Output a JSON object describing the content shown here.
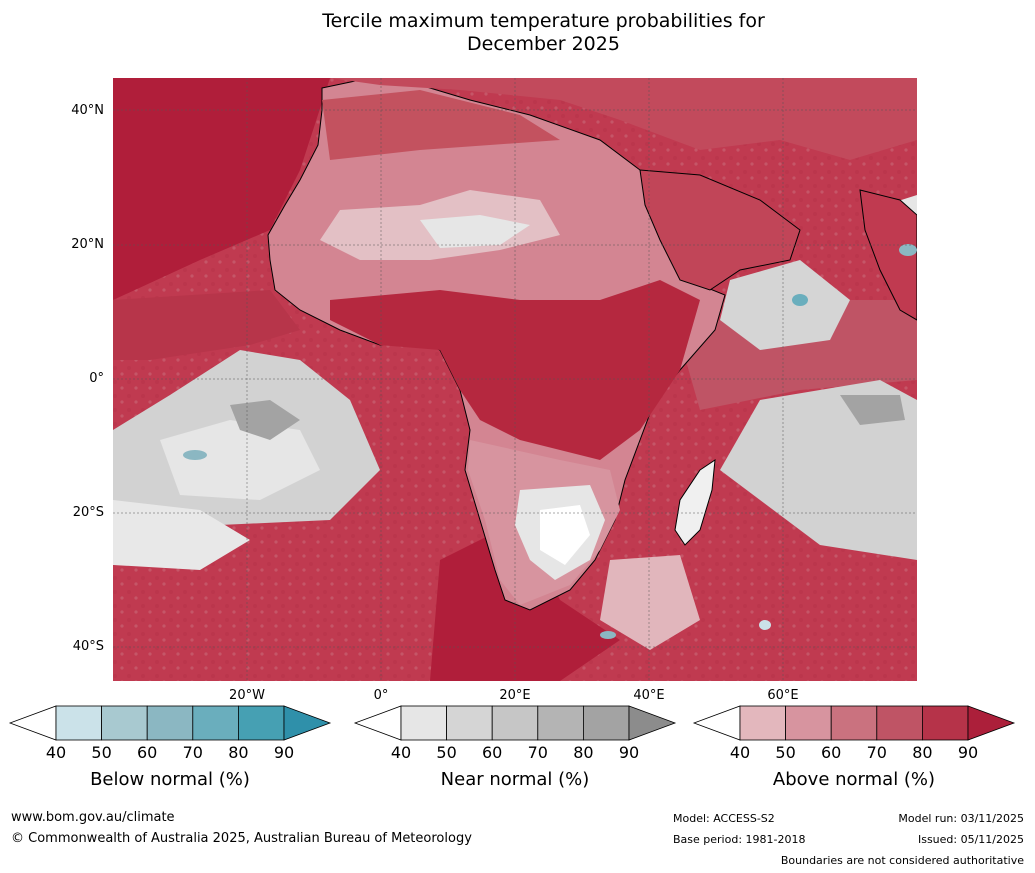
{
  "title": {
    "line1": "Tercile maximum temperature probabilities for",
    "line2": "December 2025"
  },
  "map": {
    "region": "Africa",
    "lat_labels": [
      "40°N",
      "20°N",
      "0°",
      "20°S",
      "40°S"
    ],
    "lon_labels": [
      "20°W",
      "0°",
      "20°E",
      "40°E",
      "60°E"
    ],
    "dominant_signal": "above normal",
    "colors": {
      "ocean_default": "#c03a50",
      "land_default": "#d37f8b"
    }
  },
  "colorbars": [
    {
      "title": "Below normal (%)",
      "ticks": [
        "40",
        "50",
        "60",
        "70",
        "80",
        "90"
      ],
      "colors": [
        "#ffffff",
        "#cbe2e9",
        "#a8c9d0",
        "#8bb7c2",
        "#6aaebd",
        "#46a0b3",
        "#2f90aa"
      ]
    },
    {
      "title": "Near normal (%)",
      "ticks": [
        "40",
        "50",
        "60",
        "70",
        "80",
        "90"
      ],
      "colors": [
        "#ffffff",
        "#e6e6e6",
        "#d5d5d5",
        "#c6c6c6",
        "#b4b4b4",
        "#a3a3a3",
        "#8c8c8c"
      ]
    },
    {
      "title": "Above normal (%)",
      "ticks": [
        "40",
        "50",
        "60",
        "70",
        "80",
        "90"
      ],
      "colors": [
        "#ffffff",
        "#e3b7bd",
        "#d7949f",
        "#ca727f",
        "#bf5465",
        "#b63349",
        "#ac1f3a"
      ]
    }
  ],
  "footer": {
    "website": "www.bom.gov.au/climate",
    "copyright": "© Commonwealth of Australia 2025, Australian Bureau of Meteorology",
    "model": "Model: ACCESS-S2",
    "base_period": "Base period: 1981-2018",
    "model_run": "Model run: 03/11/2025",
    "issued": "Issued: 05/11/2025",
    "disclaimer": "Boundaries are not considered authoritative"
  }
}
